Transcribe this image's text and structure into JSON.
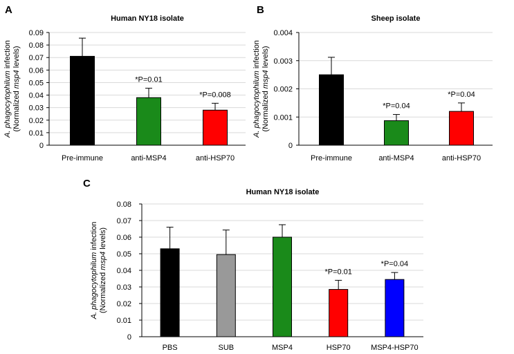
{
  "chart_data": [
    {
      "panel": "A",
      "type": "bar",
      "title": "Human NY18 isolate",
      "ylabel_line1_italic": "A. phagocytophilum",
      "ylabel_line1_rest": " infection",
      "ylabel_line2_pre": "(Normalized ",
      "ylabel_line2_italic": "msp4",
      "ylabel_line2_post": " levels)",
      "ylim": [
        0,
        0.09
      ],
      "yticks": [
        "0",
        "0.01",
        "0.02",
        "0.03",
        "0.04",
        "0.05",
        "0.06",
        "0.07",
        "0.08",
        "0.09"
      ],
      "categories": [
        "Pre-immune",
        "anti-MSP4",
        "anti-HSP70"
      ],
      "values": [
        0.071,
        0.038,
        0.028
      ],
      "errors": [
        0.0145,
        0.0075,
        0.0055
      ],
      "colors": [
        "#000000",
        "#1a8a1a",
        "#ff0000"
      ],
      "annotations": [
        "",
        "*P=0.01",
        "*P=0.008"
      ]
    },
    {
      "panel": "B",
      "type": "bar",
      "title": "Sheep isolate",
      "ylabel_line1_italic": "A. phagocytophilum",
      "ylabel_line1_rest": " infection",
      "ylabel_line2_pre": "(Normalized ",
      "ylabel_line2_italic": "msp4",
      "ylabel_line2_post": " levels)",
      "ylim": [
        0,
        0.004
      ],
      "yticks": [
        "0",
        "0.001",
        "0.002",
        "0.003",
        "0.004"
      ],
      "categories": [
        "Pre-immune",
        "anti-MSP4",
        "anti-HSP70"
      ],
      "values": [
        0.0025,
        0.00087,
        0.0012
      ],
      "errors": [
        0.00062,
        0.00022,
        0.0003
      ],
      "colors": [
        "#000000",
        "#1a8a1a",
        "#ff0000"
      ],
      "annotations": [
        "",
        "*P=0.04",
        "*P=0.04"
      ]
    },
    {
      "panel": "C",
      "type": "bar",
      "title": "Human NY18 isolate",
      "ylabel_line1_italic": "A. phagocytophilum",
      "ylabel_line1_rest": " infection",
      "ylabel_line2_pre": "(Normalized ",
      "ylabel_line2_italic": "msp4",
      "ylabel_line2_post": " levels)",
      "ylim": [
        0,
        0.08
      ],
      "yticks": [
        "0",
        "0.01",
        "0.02",
        "0.03",
        "0.04",
        "0.05",
        "0.06",
        "0.07",
        "0.08"
      ],
      "categories": [
        "PBS",
        "SUB",
        "MSP4",
        "HSP70",
        "MSP4-HSP70"
      ],
      "values": [
        0.053,
        0.0495,
        0.06,
        0.0285,
        0.0345
      ],
      "errors": [
        0.013,
        0.0148,
        0.0075,
        0.0055,
        0.0042
      ],
      "colors": [
        "#000000",
        "#999999",
        "#1a8a1a",
        "#ff0000",
        "#0000ff"
      ],
      "annotations": [
        "",
        "",
        "",
        "*P=0.01",
        "*P=0.04"
      ]
    }
  ]
}
